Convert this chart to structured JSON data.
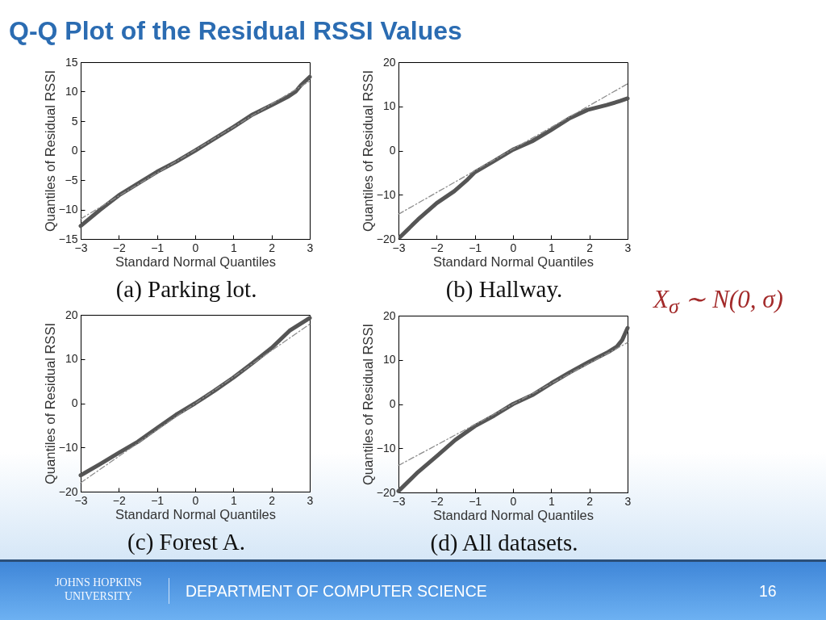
{
  "chart_data": [
    {
      "type": "line",
      "title": "(a) Parking lot.",
      "xlabel": "Standard Normal Quantiles",
      "ylabel": "Quantiles of Residual RSSI",
      "xlim": [
        -3,
        3
      ],
      "ylim": [
        -15,
        15
      ],
      "xticks": [
        -3,
        -2,
        -1,
        0,
        1,
        2,
        3
      ],
      "yticks": [
        -15,
        -10,
        -5,
        0,
        5,
        10,
        15
      ],
      "series": [
        {
          "color": "#555555",
          "x": [
            -3,
            -2.5,
            -2,
            -1.45,
            -1,
            -0.5,
            0,
            0.5,
            1,
            1.5,
            2,
            2.42,
            2.63,
            2.77,
            3
          ],
          "values": [
            -12.8,
            -10.1,
            -7.6,
            -5.4,
            -3.6,
            -1.9,
            0,
            2,
            4,
            6.1,
            7.7,
            9.1,
            10,
            11.1,
            12.5
          ]
        },
        {
          "type": "line",
          "line_style": "dashed",
          "color": "#8c8c8c",
          "x": [
            -3,
            3
          ],
          "values": [
            -11.6,
            11.8
          ]
        }
      ],
      "annotations": [
        "Q-Q Plot of the Residual RSSI Values"
      ]
    },
    {
      "type": "line",
      "title": "(b) Hallway.",
      "xlabel": "Standard Normal Quantiles",
      "ylabel": "Quantiles of Residual RSSI",
      "xlim": [
        -3,
        3
      ],
      "ylim": [
        -20,
        20
      ],
      "xticks": [
        -3,
        -2,
        -1,
        0,
        1,
        2,
        3
      ],
      "yticks": [
        -20,
        -10,
        0,
        10,
        20
      ],
      "series": [
        {
          "color": "#555555",
          "x": [
            -2.95,
            -2.49,
            -2,
            -1.54,
            -1.22,
            -1,
            -0.52,
            0,
            0.5,
            0.97,
            1.46,
            1.95,
            2.45,
            2.8,
            3
          ],
          "values": [
            -19.5,
            -15.6,
            -11.9,
            -9.2,
            -6.8,
            -4.9,
            -2.5,
            0.2,
            2.1,
            4.5,
            7.2,
            9.2,
            10.3,
            11.2,
            11.8
          ]
        },
        {
          "type": "line",
          "line_style": "dashed",
          "color": "#8c8c8c",
          "x": [
            -3,
            3
          ],
          "values": [
            -14.4,
            15.1
          ]
        }
      ],
      "annotations": [
        "X$_{σ}$ ∼ N(0, σ)"
      ]
    },
    {
      "type": "line",
      "title": "(c) Forest A.",
      "xlabel": "Standard Normal Quantiles",
      "ylabel": "Quantiles of Residual RSSI",
      "xlim": [
        -3,
        3
      ],
      "ylim": [
        -20,
        20
      ],
      "xticks": [
        -3,
        -2,
        -1,
        0,
        1,
        2,
        3
      ],
      "yticks": [
        -20,
        -10,
        0,
        10,
        20
      ],
      "series": [
        {
          "color": "#555555",
          "x": [
            -3,
            -2.5,
            -2,
            -1.5,
            -1,
            -0.5,
            0,
            0.5,
            1,
            1.5,
            2,
            2.47,
            3
          ],
          "values": [
            -16.3,
            -13.8,
            -11.2,
            -8.7,
            -5.6,
            -2.6,
            0,
            2.8,
            5.8,
            9.1,
            12.5,
            16.4,
            19.3
          ]
        },
        {
          "type": "line",
          "line_style": "dashed",
          "color": "#8c8c8c",
          "x": [
            -3,
            3
          ],
          "values": [
            -18,
            17.9
          ]
        }
      ]
    },
    {
      "type": "line",
      "title": "(d) All datasets.",
      "xlabel": "Standard Normal Quantiles",
      "ylabel": "Quantiles of Residual RSSI",
      "xlim": [
        -3,
        3
      ],
      "ylim": [
        -20,
        20
      ],
      "xticks": [
        -3,
        -2,
        -1,
        0,
        1,
        2,
        3
      ],
      "yticks": [
        -20,
        -10,
        0,
        10,
        20
      ],
      "series": [
        {
          "color": "#555555",
          "x": [
            -3,
            -2.49,
            -2,
            -1.51,
            -1,
            -0.49,
            0,
            0.5,
            1,
            1.49,
            2,
            2.5,
            2.72,
            2.86,
            3
          ],
          "values": [
            -19.7,
            -15.4,
            -11.8,
            -8.1,
            -5,
            -2.6,
            0,
            2,
            4.7,
            7.2,
            9.6,
            11.8,
            13,
            14.5,
            17.2
          ]
        },
        {
          "type": "line",
          "line_style": "dashed",
          "color": "#8c8c8c",
          "x": [
            -3,
            3
          ],
          "values": [
            -13.9,
            13.9
          ]
        }
      ],
      "annotations": [
        "JOHNS HOPKINS UNIVERSITY",
        "DEPARTMENT OF COMPUTER SCIENCE",
        "16"
      ]
    }
  ]
}
